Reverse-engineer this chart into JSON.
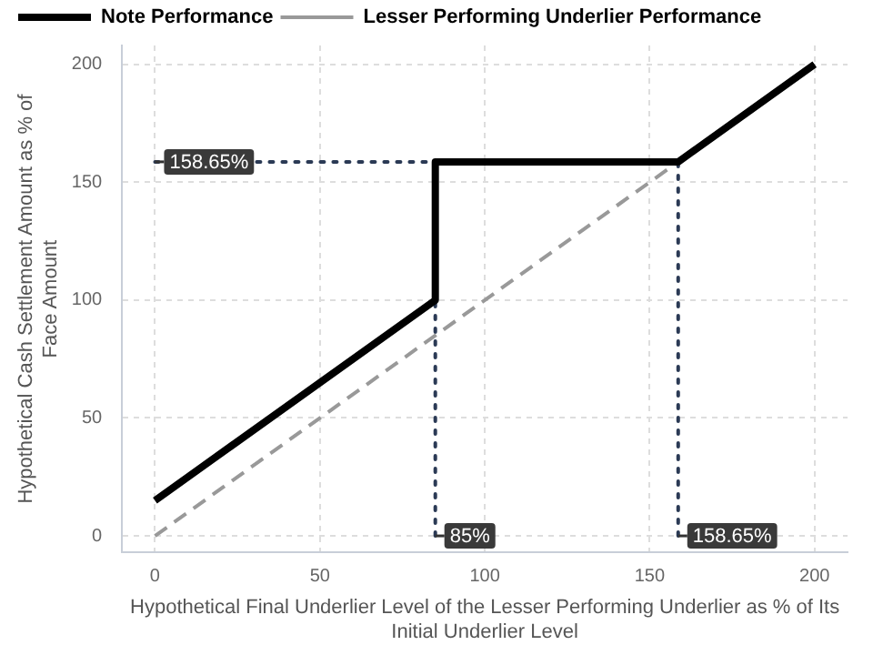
{
  "chart_data": {
    "type": "line",
    "xlabel": "Hypothetical Final Underlier Level of the Lesser Performing Underlier as % of Its Initial Underlier Level",
    "ylabel": "Hypothetical Cash Settlement Amount as % of Face Amount",
    "xlim": [
      -10,
      210
    ],
    "xticks": [
      0,
      50,
      100,
      150,
      200
    ],
    "ylim": [
      -7,
      208
    ],
    "yticks": [
      0,
      50,
      100,
      150,
      200
    ],
    "grid": true,
    "legend": "top",
    "marker": "none",
    "series": [
      {
        "name": "Note Performance",
        "color": "#000000",
        "line_style": "solid",
        "x": [
          0,
          85,
          85,
          158.65,
          200
        ],
        "values": [
          15,
          100,
          158.65,
          158.65,
          200
        ]
      },
      {
        "name": "Lesser Performing Underlier Performance",
        "color": "#999999",
        "line_style": "dashed",
        "x": [
          0,
          200
        ],
        "values": [
          0,
          200
        ]
      },
      {
        "color": "#2b3a55",
        "line_style": "dotted",
        "x": [
          0,
          85
        ],
        "values": [
          158.65,
          158.65
        ]
      },
      {
        "color": "#2b3a55",
        "line_style": "dotted",
        "x": [
          85,
          85
        ],
        "values": [
          0,
          158.65
        ]
      },
      {
        "color": "#2b3a55",
        "line_style": "dotted",
        "x": [
          158.65,
          158.65
        ],
        "values": [
          0,
          158.65
        ]
      }
    ],
    "annotations": [
      {
        "text": "158.65%",
        "x": 0,
        "y": 158.65
      },
      {
        "text": "85%",
        "x": 85,
        "y": 0
      },
      {
        "text": "158.65%",
        "x": 158.65,
        "y": 0
      }
    ]
  }
}
